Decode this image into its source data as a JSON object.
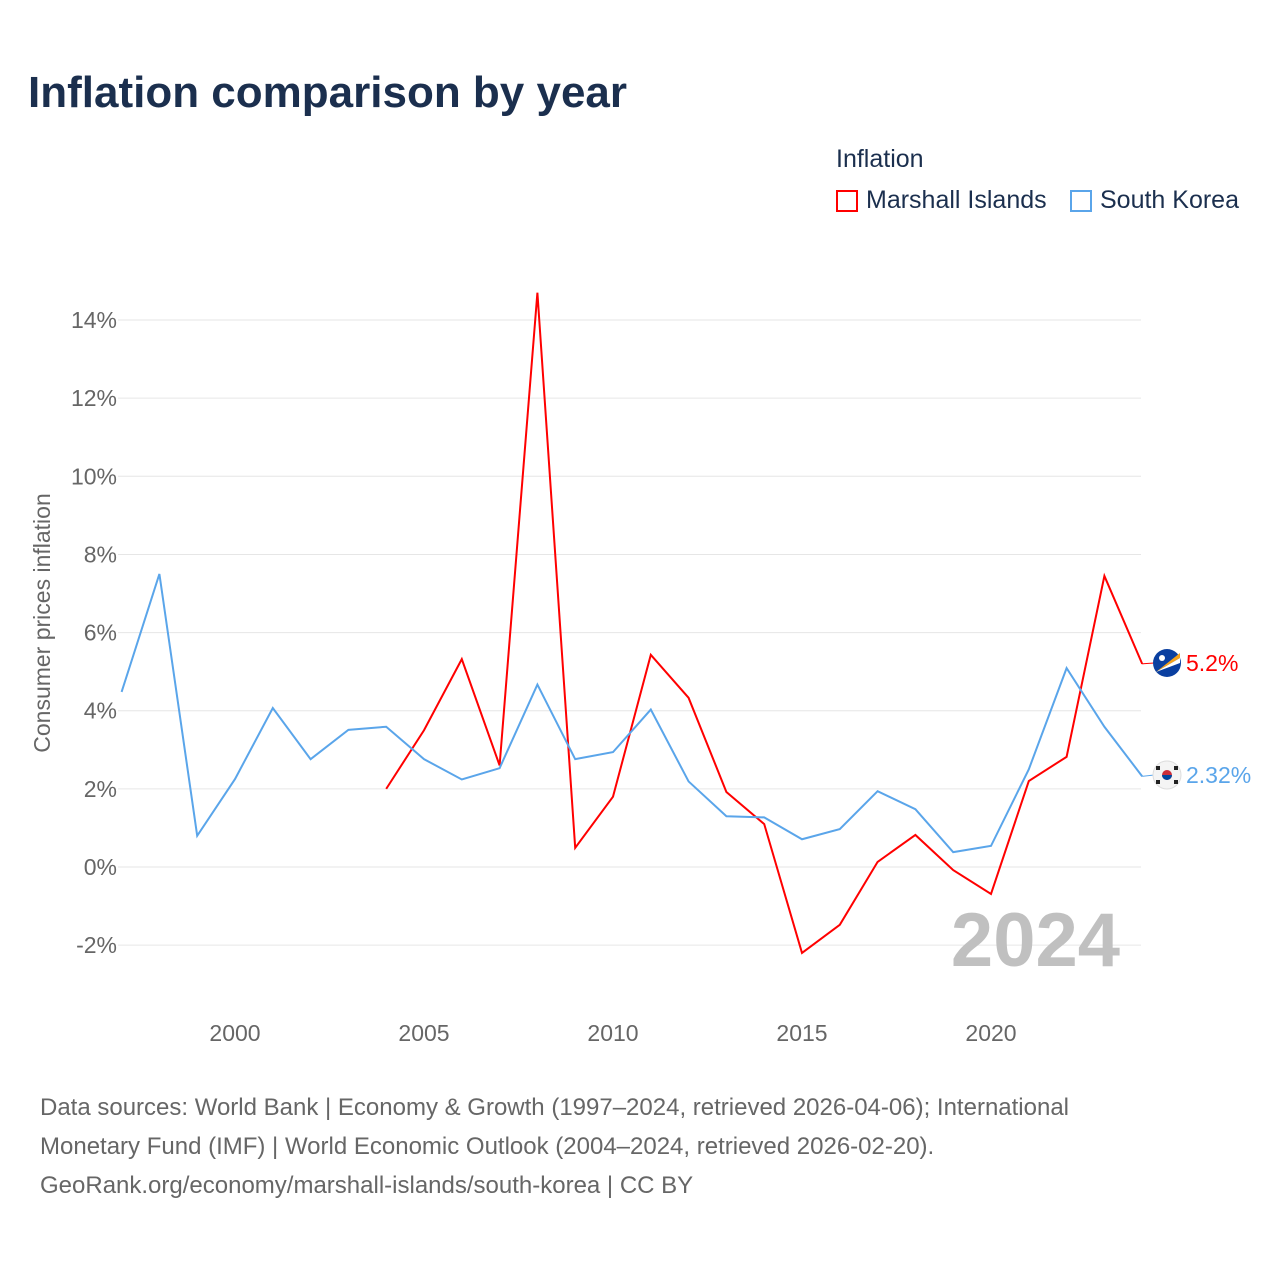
{
  "title": "Inflation comparison by year",
  "legend": {
    "title": "Inflation",
    "items": [
      {
        "label": "Marshall Islands",
        "color": "#ff0000"
      },
      {
        "label": "South Korea",
        "color": "#5aa5ea"
      }
    ]
  },
  "footer": {
    "line1": "Data sources: World Bank | Economy & Growth (1997–2024, retrieved 2026-04-06); International",
    "line2": "Monetary Fund (IMF) | World Economic Outlook (2004–2024, retrieved 2026-02-20).",
    "line3": "GeoRank.org/economy/marshall-islands/south-korea | CC BY"
  },
  "chart_data": {
    "type": "line",
    "title": "Inflation comparison by year",
    "xlabel": "",
    "ylabel": "Consumer prices inflation",
    "watermark": "2024",
    "xlim": [
      1997,
      2024
    ],
    "ylim": [
      -3,
      15
    ],
    "grid": true,
    "legend_position": "top-right",
    "x_ticks": [
      2000,
      2005,
      2010,
      2015,
      2020
    ],
    "x_tick_labels": [
      "2000",
      "2005",
      "2010",
      "2015",
      "2020"
    ],
    "y_ticks": [
      -2,
      0,
      2,
      4,
      6,
      8,
      10,
      12,
      14
    ],
    "y_tick_labels": [
      "-2%",
      "0%",
      "2%",
      "4%",
      "6%",
      "8%",
      "10%",
      "12%",
      "14%"
    ],
    "series": [
      {
        "name": "Marshall Islands",
        "color": "#ff0000",
        "end_label": "5.2%",
        "flag_icon": "marshall-islands-flag",
        "x": [
          2004,
          2005,
          2006,
          2007,
          2008,
          2009,
          2010,
          2011,
          2012,
          2013,
          2014,
          2015,
          2016,
          2017,
          2018,
          2019,
          2020,
          2021,
          2022,
          2023,
          2024
        ],
        "values": [
          2.0,
          3.5,
          5.32,
          2.6,
          14.7,
          0.49,
          1.8,
          5.43,
          4.33,
          1.92,
          1.1,
          -2.2,
          -1.48,
          0.13,
          0.82,
          -0.08,
          -0.69,
          2.2,
          2.82,
          7.45,
          5.2
        ]
      },
      {
        "name": "South Korea",
        "color": "#5aa5ea",
        "end_label": "2.32%",
        "flag_icon": "south-korea-flag",
        "x": [
          1997,
          1998,
          1999,
          2000,
          2001,
          2002,
          2003,
          2004,
          2005,
          2006,
          2007,
          2008,
          2009,
          2010,
          2011,
          2012,
          2013,
          2014,
          2015,
          2016,
          2017,
          2018,
          2019,
          2020,
          2021,
          2022,
          2023,
          2024
        ],
        "values": [
          4.48,
          7.5,
          0.8,
          2.25,
          4.07,
          2.76,
          3.51,
          3.59,
          2.76,
          2.24,
          2.53,
          4.67,
          2.76,
          2.94,
          4.03,
          2.19,
          1.3,
          1.27,
          0.71,
          0.97,
          1.94,
          1.48,
          0.38,
          0.54,
          2.5,
          5.09,
          3.59,
          2.32
        ]
      }
    ]
  }
}
